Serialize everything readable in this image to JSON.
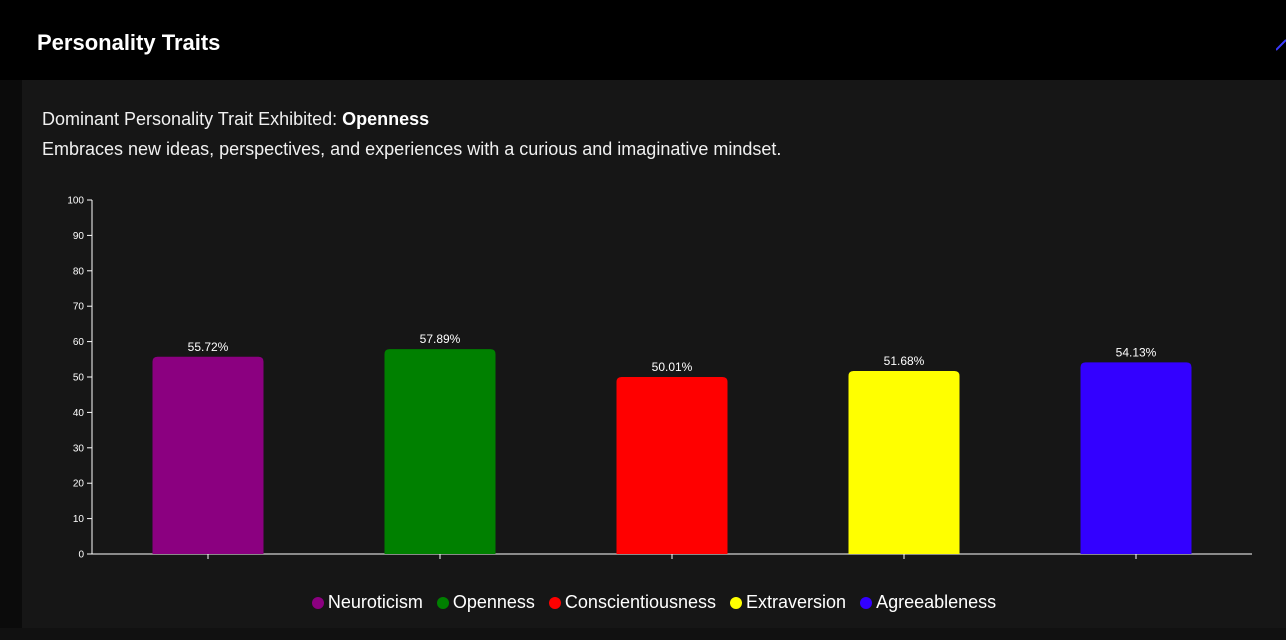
{
  "modal": {
    "title": "Personality Traits",
    "dominant_label": "Dominant Personality Trait Exhibited: ",
    "dominant_trait": "Openness",
    "description": "Embraces new ideas, perspectives, and experiences with a curious and imaginative mindset."
  },
  "chart_data": {
    "type": "bar",
    "title": "",
    "xlabel": "",
    "ylabel": "",
    "categories": [
      "Neuroticism",
      "Openness",
      "Conscientiousness",
      "Extraversion",
      "Agreeableness"
    ],
    "values": [
      55.72,
      57.89,
      50.01,
      51.68,
      54.13
    ],
    "value_labels": [
      "55.72%",
      "57.89%",
      "50.01%",
      "51.68%",
      "54.13%"
    ],
    "colors": [
      "#8b0080",
      "#008000",
      "#ff0000",
      "#ffff00",
      "#3300ff"
    ],
    "ylim": [
      0,
      100
    ],
    "yticks": [
      0,
      10,
      20,
      30,
      40,
      50,
      60,
      70,
      80,
      90,
      100
    ],
    "grid": false,
    "legend_position": "bottom"
  }
}
